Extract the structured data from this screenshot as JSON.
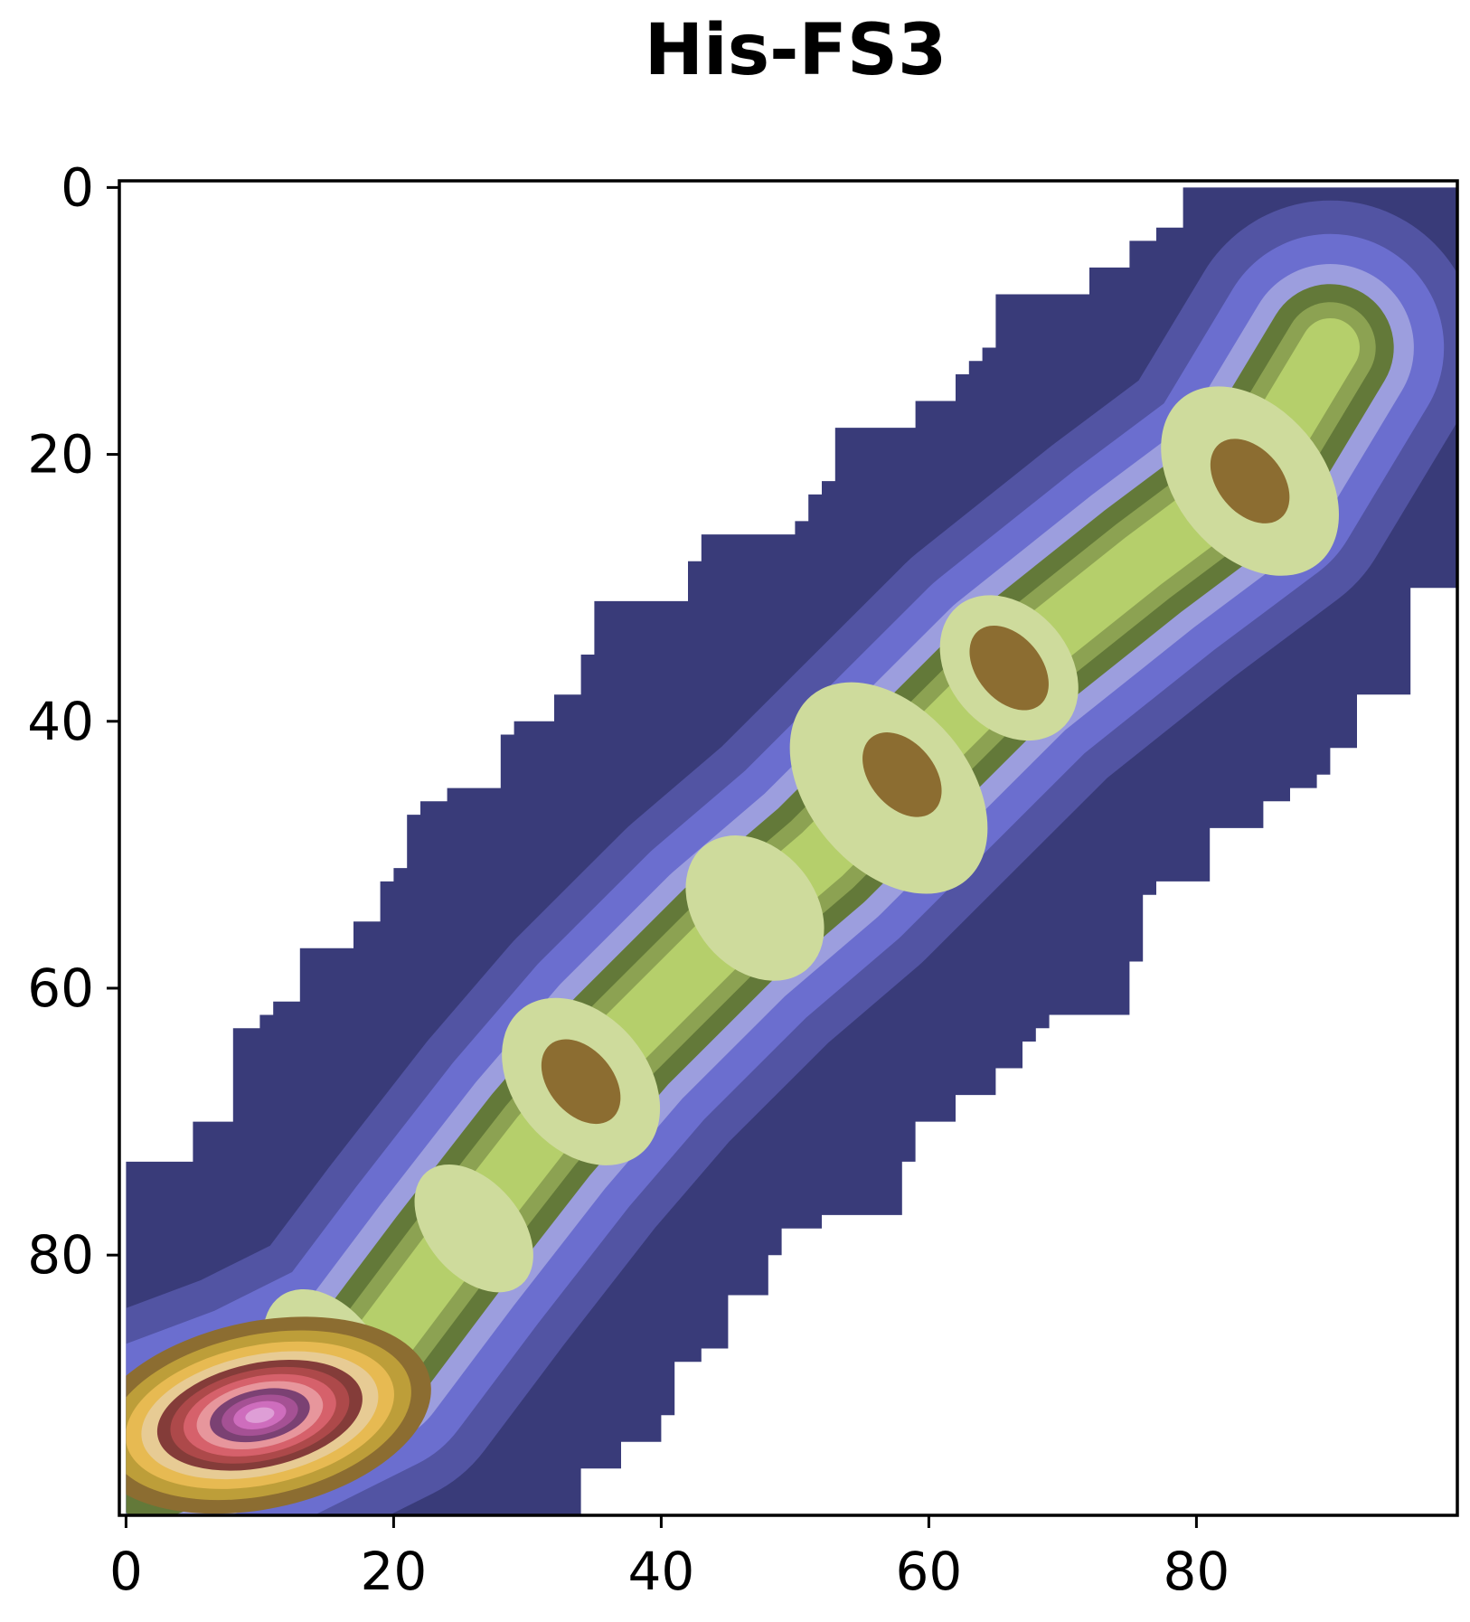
{
  "chart_data": {
    "type": "heatmap",
    "subtype": "filled-contour",
    "title": "His-FS3",
    "xlabel": "",
    "ylabel": "",
    "xlim": [
      -0.5,
      99.5
    ],
    "ylim": [
      99.5,
      -0.5
    ],
    "y_axis_inverted": true,
    "grid": false,
    "legend": "none",
    "xticks": [
      0,
      20,
      40,
      60,
      80
    ],
    "yticks": [
      0,
      20,
      40,
      60,
      80
    ],
    "xtick_labels": [
      "0",
      "20",
      "40",
      "60",
      "80"
    ],
    "ytick_labels": [
      "0",
      "20",
      "40",
      "60",
      "80"
    ],
    "background_color": "#ffffff",
    "colormap": "tab20b-like",
    "level_colors": [
      "#393b79",
      "#5254a3",
      "#6b6ecf",
      "#9c9ede",
      "#637939",
      "#8ca252",
      "#b5cf6b",
      "#cedb9c",
      "#8c6d31",
      "#bd9e39",
      "#e7ba52",
      "#e7cb94",
      "#843c39",
      "#ad494a",
      "#d6616b",
      "#e7969c",
      "#7b4173",
      "#a55194",
      "#ce6dbd",
      "#de9ed6"
    ],
    "support_region": {
      "description": "non-zero density band around the diagonal",
      "upper_edge": [
        [
          0,
          73
        ],
        [
          5,
          73
        ],
        [
          5,
          70
        ],
        [
          8,
          70
        ],
        [
          8,
          63
        ],
        [
          10,
          63
        ],
        [
          10,
          62
        ],
        [
          11,
          62
        ],
        [
          11,
          61
        ],
        [
          13,
          61
        ],
        [
          13,
          57
        ],
        [
          17,
          57
        ],
        [
          17,
          55
        ],
        [
          19,
          55
        ],
        [
          19,
          52
        ],
        [
          20,
          52
        ],
        [
          20,
          51
        ],
        [
          21,
          51
        ],
        [
          21,
          47
        ],
        [
          22,
          47
        ],
        [
          22,
          46
        ],
        [
          24,
          46
        ],
        [
          24,
          45
        ],
        [
          28,
          45
        ],
        [
          28,
          41
        ],
        [
          29,
          41
        ],
        [
          29,
          40
        ],
        [
          32,
          40
        ],
        [
          32,
          38
        ],
        [
          34,
          38
        ],
        [
          34,
          35
        ],
        [
          35,
          35
        ],
        [
          35,
          31
        ],
        [
          42,
          31
        ],
        [
          42,
          28
        ],
        [
          43,
          28
        ],
        [
          43,
          26
        ],
        [
          50,
          26
        ],
        [
          50,
          25
        ],
        [
          51,
          25
        ],
        [
          51,
          23
        ],
        [
          52,
          23
        ],
        [
          52,
          22
        ],
        [
          53,
          22
        ],
        [
          53,
          18
        ],
        [
          59,
          18
        ],
        [
          59,
          16
        ],
        [
          62,
          16
        ],
        [
          62,
          14
        ],
        [
          63,
          14
        ],
        [
          63,
          13
        ],
        [
          64,
          13
        ],
        [
          64,
          12
        ],
        [
          65,
          12
        ],
        [
          65,
          8
        ],
        [
          72,
          8
        ],
        [
          72,
          6
        ],
        [
          75,
          6
        ],
        [
          75,
          4
        ],
        [
          77,
          4
        ],
        [
          77,
          3
        ],
        [
          79,
          3
        ],
        [
          79,
          0
        ],
        [
          99.5,
          0
        ]
      ],
      "lower_edge": [
        [
          99.5,
          30
        ],
        [
          96,
          30
        ],
        [
          96,
          38
        ],
        [
          92,
          38
        ],
        [
          92,
          42
        ],
        [
          90,
          42
        ],
        [
          90,
          44
        ],
        [
          89,
          44
        ],
        [
          89,
          45
        ],
        [
          87,
          45
        ],
        [
          87,
          46
        ],
        [
          85,
          46
        ],
        [
          85,
          48
        ],
        [
          81,
          48
        ],
        [
          81,
          52
        ],
        [
          77,
          52
        ],
        [
          77,
          53
        ],
        [
          76,
          53
        ],
        [
          76,
          58
        ],
        [
          75,
          58
        ],
        [
          75,
          62
        ],
        [
          69,
          62
        ],
        [
          69,
          63
        ],
        [
          68,
          63
        ],
        [
          68,
          64
        ],
        [
          67,
          64
        ],
        [
          67,
          66
        ],
        [
          65,
          66
        ],
        [
          65,
          68
        ],
        [
          62,
          68
        ],
        [
          62,
          70
        ],
        [
          59,
          70
        ],
        [
          59,
          73
        ],
        [
          58,
          73
        ],
        [
          58,
          77
        ],
        [
          52,
          77
        ],
        [
          52,
          78
        ],
        [
          49,
          78
        ],
        [
          49,
          80
        ],
        [
          48,
          80
        ],
        [
          48,
          83
        ],
        [
          45,
          83
        ],
        [
          45,
          87
        ],
        [
          43,
          87
        ],
        [
          43,
          88
        ],
        [
          41,
          88
        ],
        [
          41,
          92
        ],
        [
          40,
          92
        ],
        [
          40,
          94
        ],
        [
          37,
          94
        ],
        [
          37,
          96
        ],
        [
          34,
          96
        ],
        [
          34,
          99.5
        ],
        [
          0,
          99.5
        ]
      ]
    },
    "density_peaks": [
      {
        "x": 10,
        "y": 92,
        "level": 19
      },
      {
        "x": 84,
        "y": 22,
        "level": 8
      },
      {
        "x": 66,
        "y": 36,
        "level": 8
      },
      {
        "x": 58,
        "y": 44,
        "level": 8
      },
      {
        "x": 34,
        "y": 67,
        "level": 8
      }
    ]
  }
}
